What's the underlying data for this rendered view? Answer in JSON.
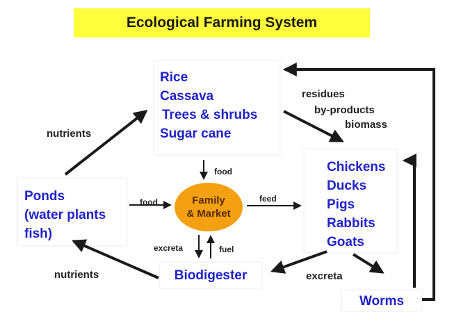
{
  "title": "Ecological Farming System",
  "crops": [
    "Rice",
    "Cassava",
    "Trees & shrubs",
    "Sugar cane"
  ],
  "animals": [
    "Chickens",
    "Ducks",
    "Pigs",
    "Rabbits",
    "Goats"
  ],
  "ponds": [
    "Ponds",
    "(water plants",
    "fish)"
  ],
  "center": [
    "Family",
    "& Market"
  ],
  "biodigester": "Biodigester",
  "worms": "Worms",
  "labels": {
    "nutrients_top": "nutrients",
    "nutrients_bottom": "nutrients",
    "residues": "residues",
    "byproducts": "by-products",
    "biomass": "biomass",
    "food_top": "food",
    "food_left": "food",
    "feed": "feed",
    "excreta_left": "excreta",
    "fuel": "fuel",
    "excreta_right": "excreta"
  },
  "colors": {
    "title_bg": "#ffff3c",
    "node_text": "#1f22c8",
    "center_fill": "#f5a011",
    "arrow": "#1a1a1a"
  }
}
